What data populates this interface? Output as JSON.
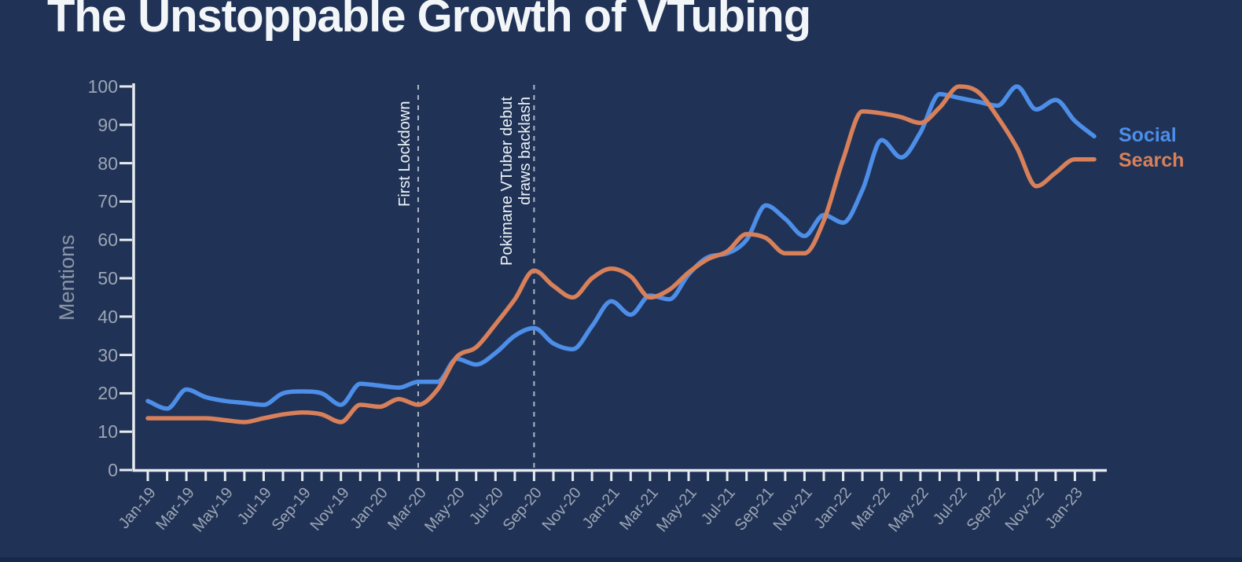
{
  "title": "The Unstoppable Growth of VTubing",
  "colors": {
    "background": "#203356",
    "bottom_strip": "#17294A",
    "title_text": "#F3F6F9",
    "axis": "#E7EBF1",
    "tick_label": "#9DA5B5",
    "axis_title": "#8C95A8",
    "annotation_line": "#AEB6C2",
    "annotation_text": "#EEF2F7",
    "social": "#4D8EE9",
    "search": "#D8805A"
  },
  "legend": {
    "position": "right-of-plot",
    "entries": [
      "Social",
      "Search"
    ]
  },
  "chart_data": {
    "type": "line",
    "title": "The Unstoppable Growth of VTubing",
    "xlabel": "",
    "ylabel": "Mentions",
    "ylim": [
      0,
      100
    ],
    "grid": false,
    "smoothing": "monotone",
    "y_ticks": [
      0,
      10,
      20,
      30,
      40,
      50,
      60,
      70,
      80,
      90,
      100
    ],
    "x_label_every_n_months": 2,
    "x": [
      "Jan-19",
      "Feb-19",
      "Mar-19",
      "Apr-19",
      "May-19",
      "Jun-19",
      "Jul-19",
      "Aug-19",
      "Sep-19",
      "Oct-19",
      "Nov-19",
      "Dec-19",
      "Jan-20",
      "Feb-20",
      "Mar-20",
      "Apr-20",
      "May-20",
      "Jun-20",
      "Jul-20",
      "Aug-20",
      "Sep-20",
      "Oct-20",
      "Nov-20",
      "Dec-20",
      "Jan-21",
      "Feb-21",
      "Mar-21",
      "Apr-21",
      "May-21",
      "Jun-21",
      "Jul-21",
      "Aug-21",
      "Sep-21",
      "Oct-21",
      "Nov-21",
      "Dec-21",
      "Jan-22",
      "Feb-22",
      "Mar-22",
      "Apr-22",
      "May-22",
      "Jun-22",
      "Jul-22",
      "Aug-22",
      "Sep-22",
      "Oct-22",
      "Nov-22",
      "Dec-22",
      "Jan-23",
      "Feb-23"
    ],
    "series": [
      {
        "name": "Social",
        "color": "#4D8EE9",
        "values": [
          18,
          16,
          21,
          19,
          18,
          17.5,
          17,
          20,
          20.5,
          20,
          17,
          22.5,
          22,
          21.5,
          23,
          23,
          29,
          27.5,
          30.5,
          35,
          37,
          33,
          31.5,
          37.5,
          44,
          40.5,
          45.5,
          44.5,
          51,
          55.5,
          56.5,
          60,
          69,
          65.5,
          61,
          66.5,
          64.5,
          73,
          86,
          81.5,
          88,
          98,
          97,
          96,
          95,
          100,
          94,
          96.5,
          91,
          87
        ]
      },
      {
        "name": "Search",
        "color": "#D8805A",
        "values": [
          13.5,
          13.5,
          13.5,
          13.5,
          13,
          12.5,
          13.5,
          14.5,
          15,
          14.5,
          12.5,
          17,
          16.5,
          18.5,
          17,
          21,
          29.5,
          32,
          38,
          44.5,
          52,
          48,
          45,
          50,
          52.5,
          50.5,
          45,
          47,
          51.5,
          55,
          57,
          61.5,
          60.5,
          56.5,
          56.5,
          65,
          81,
          93.5,
          93,
          92,
          90.5,
          94.5,
          100,
          98.5,
          92,
          84,
          74,
          77.5,
          81,
          81
        ]
      }
    ],
    "annotations": [
      {
        "label": "First Lockdown",
        "x": "Mar-20"
      },
      {
        "label": "Pokimane VTuber debut\ndraws backlash",
        "x": "Sep-20"
      }
    ]
  }
}
